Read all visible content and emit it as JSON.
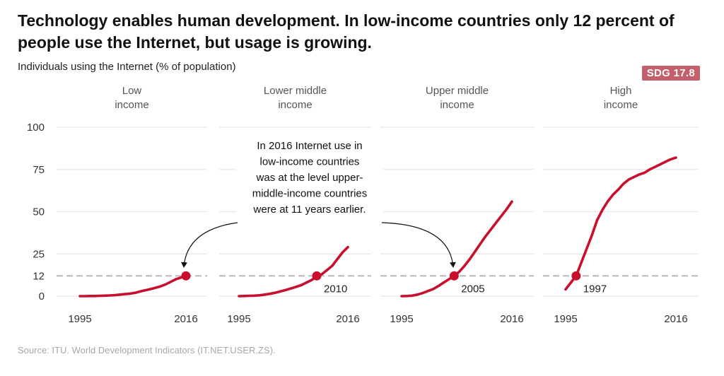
{
  "title": "Technology enables human development. In low-income countries only 12 percent of people use the Internet, but usage is growing.",
  "subtitle": "Individuals using the Internet (% of population)",
  "badge": "SDG 17.8",
  "source": "Source: ITU. World Development Indicators (IT.NET.USER.ZS).",
  "annotation": [
    "In 2016 Internet use in",
    "low-income countries",
    "was at the level upper-",
    "middle-income countries",
    "were at 11 years earlier."
  ],
  "colors": {
    "line": "#c8102e",
    "reference": "#bbbbbb",
    "grid": "#e6e6e6",
    "badge": "#c4606c"
  },
  "chart_data": {
    "type": "line",
    "x_ticks": [
      "1995",
      "2016"
    ],
    "y_ticks": [
      0,
      12,
      25,
      50,
      75,
      100
    ],
    "ylim": [
      0,
      100
    ],
    "xlim": [
      1995,
      2016
    ],
    "reference_line": 12,
    "panels": [
      {
        "title": [
          "Low",
          "income"
        ],
        "x": [
          1995,
          1996,
          1997,
          1998,
          1999,
          2000,
          2001,
          2002,
          2003,
          2004,
          2005,
          2006,
          2007,
          2008,
          2009,
          2010,
          2011,
          2012,
          2013,
          2014,
          2015,
          2016
        ],
        "values": [
          0.0,
          0.0,
          0.1,
          0.1,
          0.2,
          0.3,
          0.4,
          0.6,
          0.9,
          1.2,
          1.5,
          2.0,
          2.8,
          3.5,
          4.2,
          5.0,
          5.8,
          7.0,
          8.5,
          10.0,
          11.0,
          12.0
        ],
        "marker": {
          "x": 2016,
          "value": 12,
          "label": ""
        }
      },
      {
        "title": [
          "Lower middle",
          "income"
        ],
        "x": [
          1995,
          1996,
          1997,
          1998,
          1999,
          2000,
          2001,
          2002,
          2003,
          2004,
          2005,
          2006,
          2007,
          2008,
          2009,
          2010,
          2011,
          2012,
          2013,
          2014,
          2015,
          2016
        ],
        "values": [
          0.0,
          0.1,
          0.2,
          0.3,
          0.5,
          0.9,
          1.4,
          2.0,
          2.8,
          3.6,
          4.5,
          5.5,
          6.5,
          8.0,
          9.5,
          11.8,
          13.0,
          15.5,
          18.0,
          22.0,
          26.0,
          29.0
        ],
        "marker": {
          "x": 2010,
          "value": 12,
          "label": "2010"
        }
      },
      {
        "title": [
          "Upper middle",
          "income"
        ],
        "x": [
          1995,
          1996,
          1997,
          1998,
          1999,
          2000,
          2001,
          2002,
          2003,
          2004,
          2005,
          2006,
          2007,
          2008,
          2009,
          2010,
          2011,
          2012,
          2013,
          2014,
          2015,
          2016
        ],
        "values": [
          0.0,
          0.1,
          0.3,
          0.9,
          1.8,
          3.0,
          4.2,
          6.0,
          8.0,
          10.0,
          12.0,
          14.5,
          18.0,
          22.0,
          26.5,
          31.0,
          35.5,
          39.5,
          43.5,
          47.5,
          51.5,
          56.0
        ],
        "marker": {
          "x": 2005,
          "value": 12,
          "label": "2005"
        }
      },
      {
        "title": [
          "High",
          "income"
        ],
        "x": [
          1995,
          1996,
          1997,
          1998,
          1999,
          2000,
          2001,
          2002,
          2003,
          2004,
          2005,
          2006,
          2007,
          2008,
          2009,
          2010,
          2011,
          2012,
          2013,
          2014,
          2015,
          2016
        ],
        "values": [
          4.0,
          8.0,
          12.0,
          20.0,
          28.0,
          36.0,
          45.0,
          51.0,
          56.0,
          60.0,
          63.0,
          66.5,
          69.0,
          70.5,
          72.0,
          73.0,
          75.0,
          76.5,
          78.0,
          79.5,
          81.0,
          82.0
        ],
        "marker": {
          "x": 1997,
          "value": 12,
          "label": "1997"
        }
      }
    ]
  }
}
